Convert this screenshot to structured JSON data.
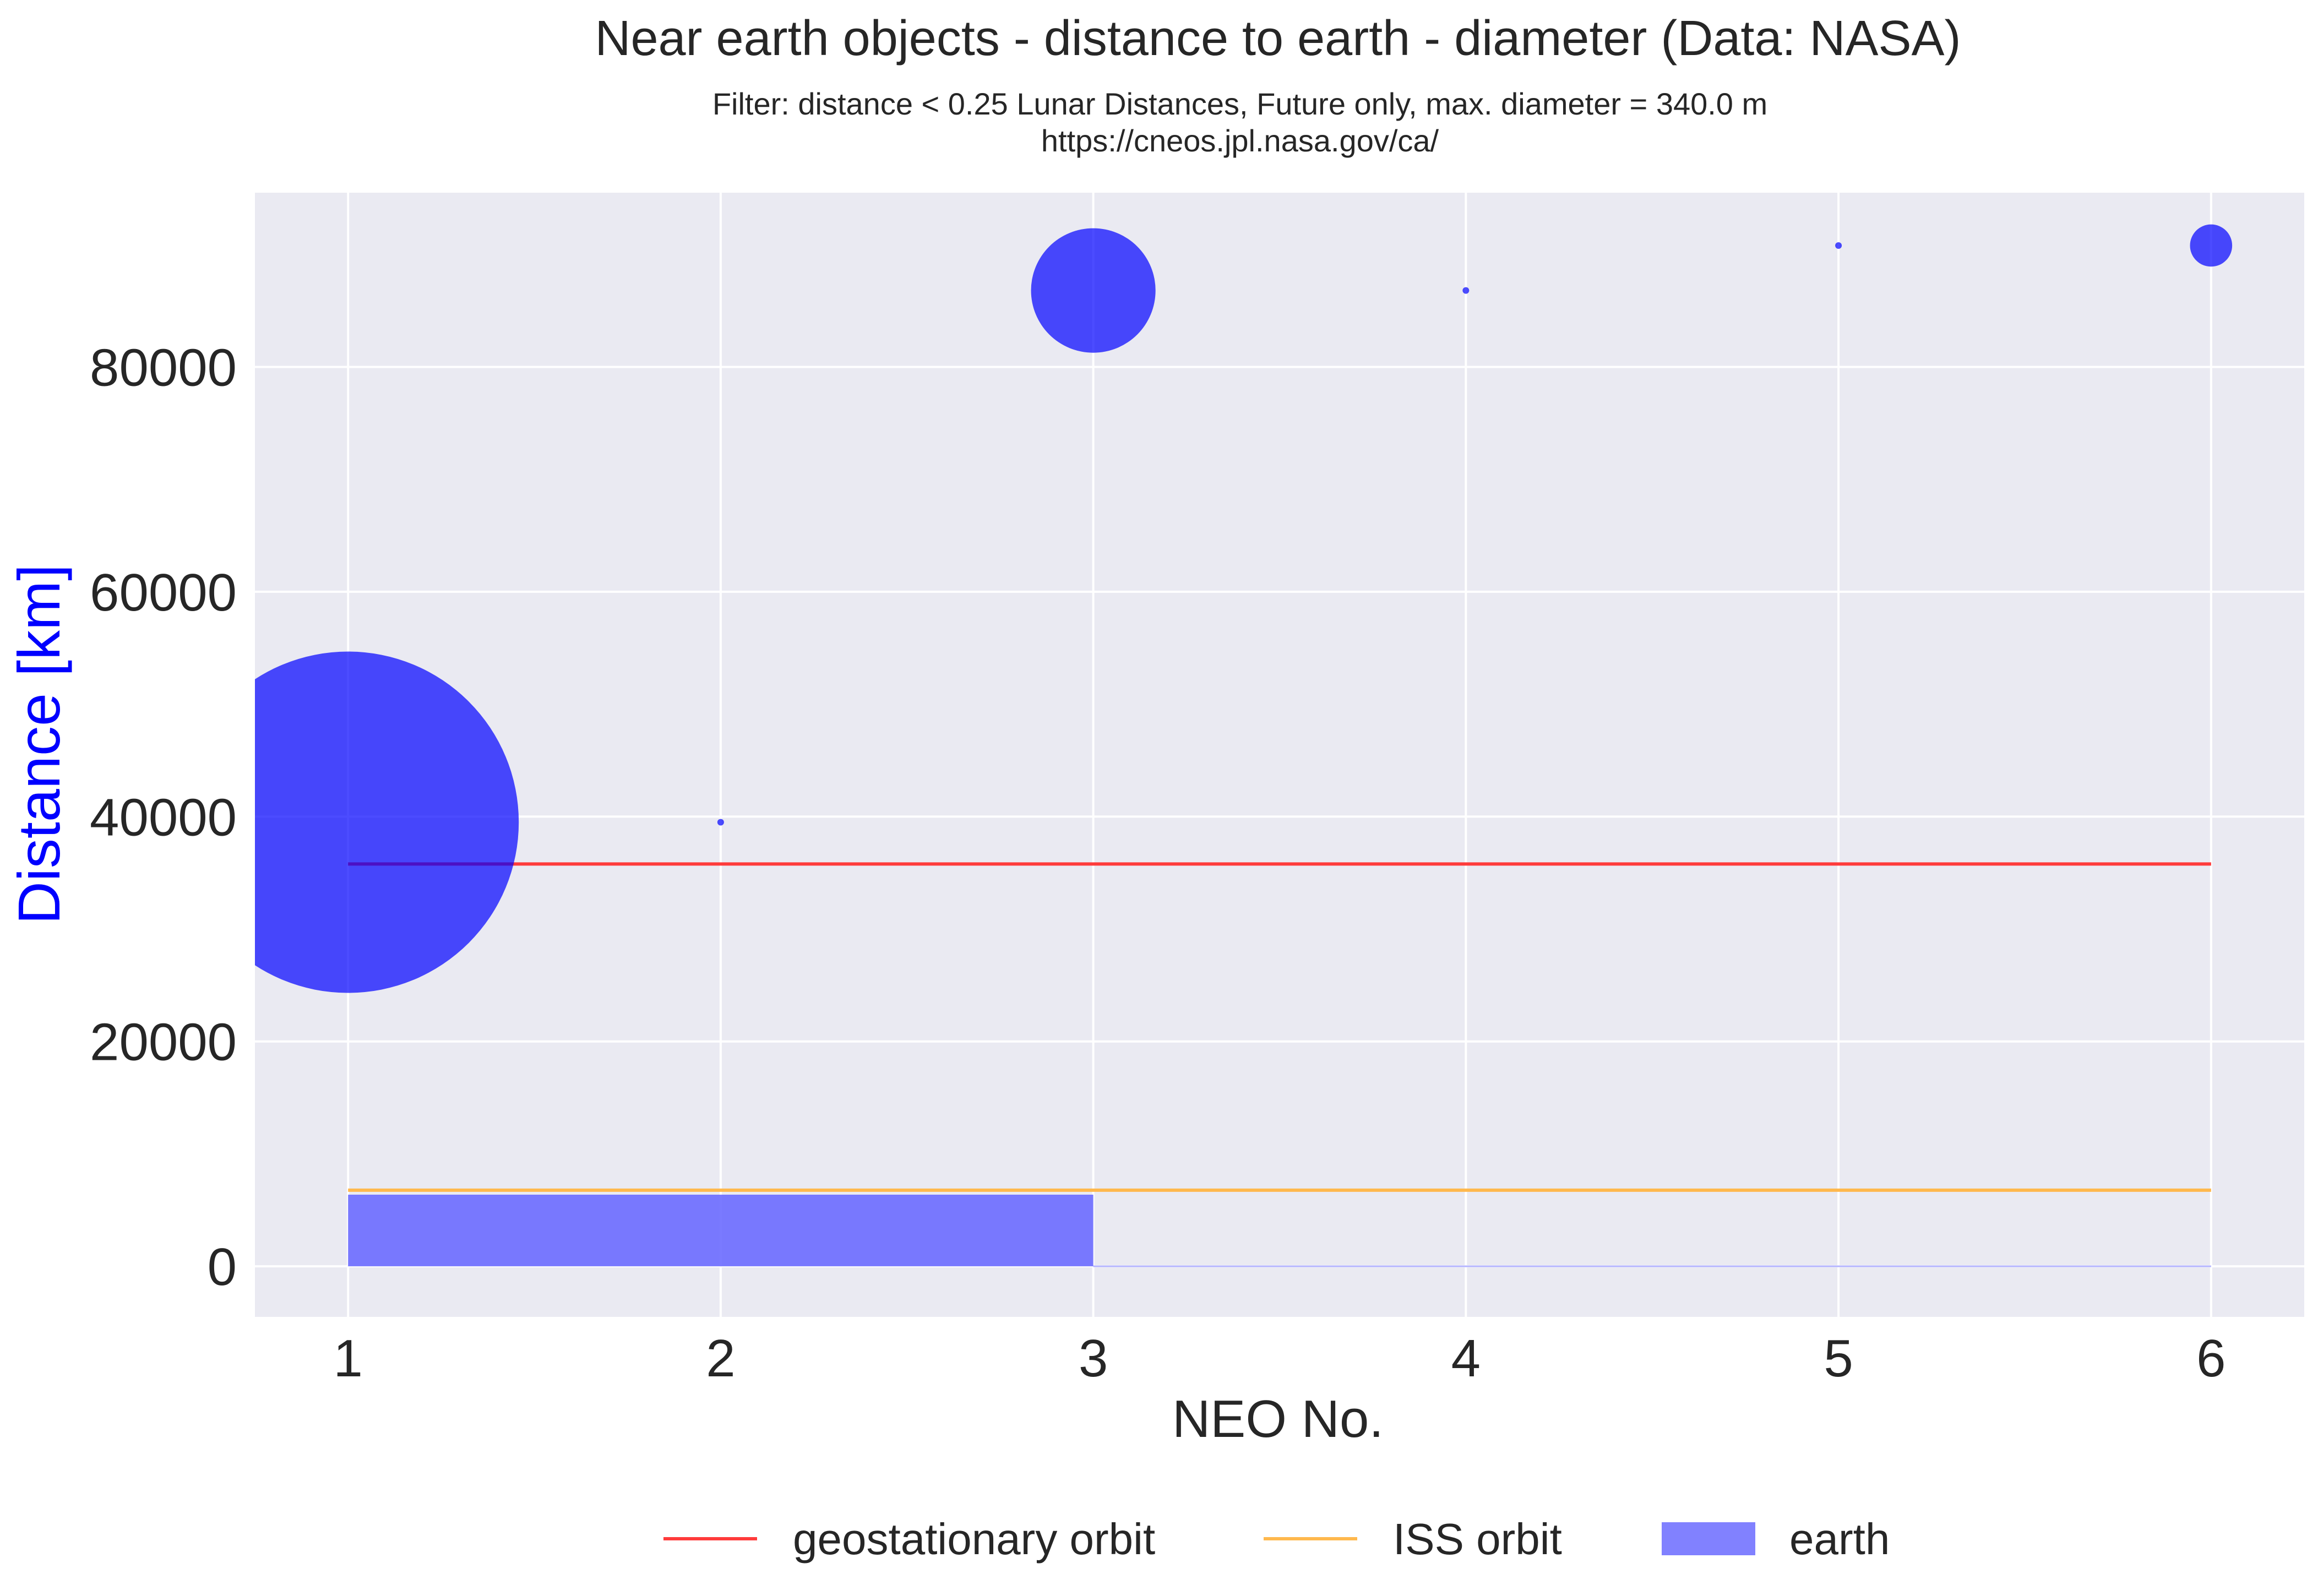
{
  "chart_data": {
    "type": "scatter",
    "title": "Near earth objects - distance to earth - diameter (Data: NASA)",
    "subtitle_lines": [
      "Filter: distance < 0.25 Lunar Distances, Future only, max. diameter = 340.0 m",
      "https://cneos.jpl.nasa.gov/ca/"
    ],
    "xlabel": "NEO No.",
    "ylabel": "Distance [km]",
    "ylabel_color": "#0000ff",
    "xlim": [
      0.75,
      6.25
    ],
    "ylim": [
      -4500,
      95500
    ],
    "x_ticks": [
      1,
      2,
      3,
      4,
      5,
      6
    ],
    "y_ticks": [
      0,
      20000,
      40000,
      60000,
      80000
    ],
    "grid": true,
    "plot_background": "#eaeaf2",
    "marker_color": "#0000ff",
    "marker_opacity": 0.7,
    "series": [
      {
        "name": "NEO",
        "x": [
          1,
          2,
          3,
          4,
          5,
          6
        ],
        "y": [
          39500,
          39500,
          86800,
          86800,
          90800,
          90800
        ],
        "diameter_m": [
          340.0,
          2.5,
          124,
          2.8,
          1.2,
          42
        ]
      }
    ],
    "reference_lines": [
      {
        "name": "geostationary orbit",
        "y": 35786,
        "x_range": [
          1,
          6
        ],
        "color": "#ff3b3b"
      },
      {
        "name": "ISS orbit",
        "y": 6771,
        "x_range": [
          1,
          6
        ],
        "color": "#ffb84d"
      }
    ],
    "earth_area": {
      "name": "earth",
      "y_range": [
        0,
        6371
      ],
      "x_range": [
        1,
        3
      ],
      "color": "#6b6bff"
    },
    "legend": {
      "placement": "bottom-center",
      "entries": [
        "geostationary orbit",
        "ISS orbit",
        "earth"
      ]
    }
  }
}
